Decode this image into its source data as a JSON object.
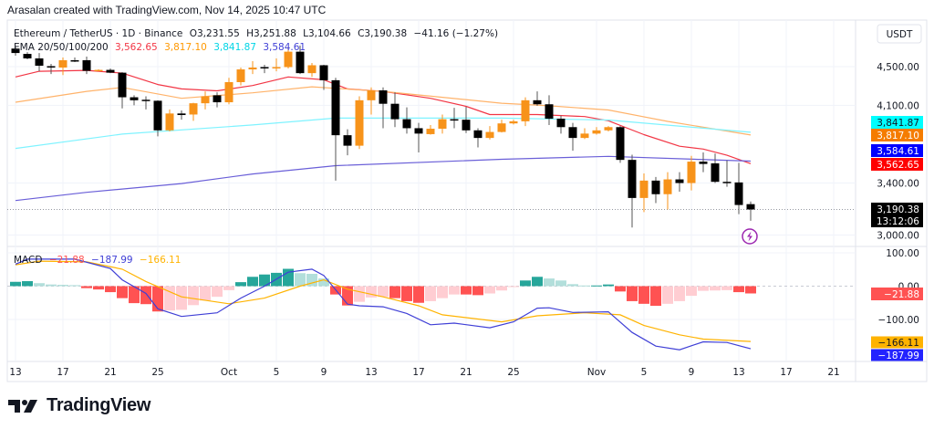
{
  "attribution": "Arasalan created with TradingView.com, Nov 14, 2025 10:47 UTC",
  "legend": {
    "symbol": "Ethereum / TetherUS · 1D · Binance",
    "open": "O3,231.55",
    "high": "H3,251.88",
    "low": "L3,104.66",
    "close": "C3,190.38",
    "change": "−41.16 (−1.27%)",
    "ema_label": "EMA 20/50/100/200",
    "ema20": "3,562.65",
    "ema50": "3,817.10",
    "ema100": "3,841.87",
    "ema200": "3,584.61"
  },
  "macd_legend": {
    "label": "MACD",
    "hist": "−21.88",
    "macd": "−187.99",
    "signal": "−166.11"
  },
  "currency_button": "USDT",
  "price_axis": {
    "ticks": [
      {
        "value": 4500,
        "label": "4,500.00"
      },
      {
        "value": 4100,
        "label": "4,100.00"
      },
      {
        "value": 3400,
        "label": "3,400.00"
      },
      {
        "value": 3000,
        "label": "3,000.00"
      }
    ],
    "scale": "log"
  },
  "macd_axis": {
    "ticks": [
      {
        "value": 100,
        "label": "100.00"
      },
      {
        "value": 0,
        "label": "0.00"
      },
      {
        "value": -100,
        "label": "−100.00"
      }
    ]
  },
  "badges": {
    "ema100": {
      "label": "3,841.87",
      "value": 3841.87
    },
    "ema50": {
      "label": "3,817.10",
      "value": 3817.1
    },
    "ema200": {
      "label": "3,584.61",
      "value": 3584.61
    },
    "ema20": {
      "label": "3,562.65",
      "value": 3562.65
    },
    "last_price": {
      "label": "3,190.38",
      "value": 3190.38,
      "countdown": "13:12:06"
    },
    "hist": {
      "label": "−21.88",
      "value": -21.88
    },
    "signal": {
      "label": "−166.11",
      "value": -166.11
    },
    "macd": {
      "label": "−187.99",
      "value": -187.99
    }
  },
  "x_axis": {
    "labels": [
      {
        "date": "2025-09-13",
        "label": "13"
      },
      {
        "date": "2025-09-17",
        "label": "17"
      },
      {
        "date": "2025-09-21",
        "label": "21"
      },
      {
        "date": "2025-09-25",
        "label": "25"
      },
      {
        "date": "2025-10-01",
        "label": "Oct"
      },
      {
        "date": "2025-10-05",
        "label": "5"
      },
      {
        "date": "2025-10-09",
        "label": "9"
      },
      {
        "date": "2025-10-13",
        "label": "13"
      },
      {
        "date": "2025-10-17",
        "label": "17"
      },
      {
        "date": "2025-10-21",
        "label": "21"
      },
      {
        "date": "2025-10-25",
        "label": "25"
      },
      {
        "date": "2025-11-01",
        "label": "Nov"
      },
      {
        "date": "2025-11-05",
        "label": "5"
      },
      {
        "date": "2025-11-09",
        "label": "9"
      },
      {
        "date": "2025-11-13",
        "label": "13"
      },
      {
        "date": "2025-11-17",
        "label": "17"
      },
      {
        "date": "2025-11-21",
        "label": "21"
      }
    ]
  },
  "footer": {
    "brand": "TradingView"
  },
  "colors": {
    "up": "#f7931a",
    "down": "#000000",
    "ema20": "#f23645",
    "ema50": "#ff9800",
    "ema100": "#00e5ff",
    "ema200": "#3f3fd6",
    "macd": "#2962ff",
    "signal": "#ffb300",
    "hist_pos_grow": "#26a69a",
    "hist_pos_fall": "#b2dfdb",
    "hist_neg_fall": "#ff5252",
    "hist_neg_grow": "#ffcdd2",
    "alert": "#9c27b0"
  },
  "chart_data": {
    "type": "candlestick",
    "title": "Ethereum / TetherUS · 1D · Binance",
    "ylabel": "USDT",
    "ylim": [
      2950,
      4800
    ],
    "grid": true,
    "candles": [
      [
        "2025-09-13",
        4700,
        4715,
        4620,
        4650
      ],
      [
        "2025-09-14",
        4640,
        4660,
        4580,
        4590
      ],
      [
        "2025-09-15",
        4590,
        4650,
        4450,
        4510
      ],
      [
        "2025-09-16",
        4505,
        4530,
        4420,
        4490
      ],
      [
        "2025-09-17",
        4490,
        4600,
        4410,
        4570
      ],
      [
        "2025-09-18",
        4570,
        4600,
        4550,
        4565
      ],
      [
        "2025-09-19",
        4570,
        4610,
        4420,
        4455
      ],
      [
        "2025-09-20",
        4455,
        4470,
        4450,
        4465
      ],
      [
        "2025-09-21",
        4465,
        4480,
        4430,
        4435
      ],
      [
        "2025-09-22",
        4435,
        4440,
        4070,
        4180
      ],
      [
        "2025-09-23",
        4180,
        4200,
        4100,
        4150
      ],
      [
        "2025-09-24",
        4155,
        4190,
        4060,
        4145
      ],
      [
        "2025-09-25",
        4145,
        4150,
        3805,
        3860
      ],
      [
        "2025-09-26",
        3860,
        4060,
        3850,
        4020
      ],
      [
        "2025-09-27",
        4020,
        4050,
        3960,
        4005
      ],
      [
        "2025-09-28",
        4010,
        4125,
        3950,
        4120
      ],
      [
        "2025-09-29",
        4120,
        4240,
        4060,
        4190
      ],
      [
        "2025-09-30",
        4200,
        4230,
        4080,
        4130
      ],
      [
        "2025-10-01",
        4130,
        4380,
        4110,
        4335
      ],
      [
        "2025-10-02",
        4335,
        4490,
        4300,
        4470
      ],
      [
        "2025-10-03",
        4470,
        4560,
        4420,
        4490
      ],
      [
        "2025-10-04",
        4495,
        4520,
        4430,
        4485
      ],
      [
        "2025-10-05",
        4485,
        4590,
        4450,
        4495
      ],
      [
        "2025-10-06",
        4495,
        4720,
        4480,
        4665
      ],
      [
        "2025-10-07",
        4665,
        4735,
        4420,
        4430
      ],
      [
        "2025-10-08",
        4430,
        4540,
        4390,
        4515
      ],
      [
        "2025-10-09",
        4515,
        4520,
        4255,
        4355
      ],
      [
        "2025-10-10",
        4355,
        4380,
        3420,
        3815
      ],
      [
        "2025-10-11",
        3815,
        3870,
        3635,
        3720
      ],
      [
        "2025-10-12",
        3720,
        4190,
        3690,
        4150
      ],
      [
        "2025-10-13",
        4150,
        4280,
        4010,
        4250
      ],
      [
        "2025-10-14",
        4250,
        4280,
        3880,
        4115
      ],
      [
        "2025-10-15",
        4115,
        4230,
        3890,
        3965
      ],
      [
        "2025-10-16",
        3965,
        4080,
        3830,
        3880
      ],
      [
        "2025-10-17",
        3880,
        3930,
        3660,
        3830
      ],
      [
        "2025-10-18",
        3825,
        3910,
        3820,
        3875
      ],
      [
        "2025-10-19",
        3875,
        4010,
        3830,
        3965
      ],
      [
        "2025-10-20",
        3965,
        4075,
        3880,
        3960
      ],
      [
        "2025-10-21",
        3960,
        4085,
        3835,
        3860
      ],
      [
        "2025-10-22",
        3860,
        3880,
        3705,
        3790
      ],
      [
        "2025-10-23",
        3790,
        3900,
        3775,
        3845
      ],
      [
        "2025-10-24",
        3845,
        3960,
        3840,
        3925
      ],
      [
        "2025-10-25",
        3925,
        3960,
        3915,
        3945
      ],
      [
        "2025-10-26",
        3945,
        4180,
        3900,
        4150
      ],
      [
        "2025-10-27",
        4150,
        4240,
        4095,
        4110
      ],
      [
        "2025-10-28",
        4110,
        4200,
        3910,
        3970
      ],
      [
        "2025-10-29",
        3970,
        4000,
        3830,
        3890
      ],
      [
        "2025-10-30",
        3890,
        3930,
        3675,
        3790
      ],
      [
        "2025-10-31",
        3790,
        3880,
        3780,
        3830
      ],
      [
        "2025-11-01",
        3830,
        3890,
        3820,
        3860
      ],
      [
        "2025-11-02",
        3860,
        3900,
        3850,
        3890
      ],
      [
        "2025-11-03",
        3890,
        3900,
        3570,
        3595
      ],
      [
        "2025-11-04",
        3595,
        3640,
        3055,
        3280
      ],
      [
        "2025-11-05",
        3280,
        3480,
        3170,
        3420
      ],
      [
        "2025-11-06",
        3420,
        3450,
        3240,
        3310
      ],
      [
        "2025-11-07",
        3310,
        3490,
        3190,
        3430
      ],
      [
        "2025-11-08",
        3430,
        3490,
        3330,
        3400
      ],
      [
        "2025-11-09",
        3400,
        3630,
        3340,
        3580
      ],
      [
        "2025-11-10",
        3580,
        3660,
        3490,
        3560
      ],
      [
        "2025-11-11",
        3565,
        3650,
        3400,
        3410
      ],
      [
        "2025-11-12",
        3410,
        3590,
        3370,
        3405
      ],
      [
        "2025-11-13",
        3405,
        3570,
        3155,
        3225
      ],
      [
        "2025-11-14",
        3231.55,
        3251.88,
        3104.66,
        3190.38
      ]
    ],
    "ema": {
      "ema20": [
        [
          "2025-09-13",
          4390
        ],
        [
          "2025-09-15",
          4450
        ],
        [
          "2025-09-19",
          4460
        ],
        [
          "2025-09-22",
          4430
        ],
        [
          "2025-09-25",
          4310
        ],
        [
          "2025-09-27",
          4265
        ],
        [
          "2025-09-30",
          4245
        ],
        [
          "2025-10-03",
          4300
        ],
        [
          "2025-10-06",
          4390
        ],
        [
          "2025-10-09",
          4360
        ],
        [
          "2025-10-11",
          4265
        ],
        [
          "2025-10-14",
          4240
        ],
        [
          "2025-10-18",
          4170
        ],
        [
          "2025-10-21",
          4090
        ],
        [
          "2025-10-23",
          4010
        ],
        [
          "2025-10-27",
          4010
        ],
        [
          "2025-10-31",
          3990
        ],
        [
          "2025-11-02",
          3950
        ],
        [
          "2025-11-05",
          3820
        ],
        [
          "2025-11-08",
          3715
        ],
        [
          "2025-11-10",
          3690
        ],
        [
          "2025-11-12",
          3635
        ],
        [
          "2025-11-14",
          3562.65
        ]
      ],
      "ema50": [
        [
          "2025-09-13",
          4130
        ],
        [
          "2025-09-19",
          4240
        ],
        [
          "2025-09-22",
          4280
        ],
        [
          "2025-09-27",
          4170
        ],
        [
          "2025-10-03",
          4225
        ],
        [
          "2025-10-08",
          4287
        ],
        [
          "2025-10-14",
          4240
        ],
        [
          "2025-10-24",
          4120
        ],
        [
          "2025-10-28",
          4095
        ],
        [
          "2025-11-02",
          4054
        ],
        [
          "2025-11-07",
          3944
        ],
        [
          "2025-11-14",
          3817.1
        ]
      ],
      "ema100": [
        [
          "2025-09-13",
          3696
        ],
        [
          "2025-09-22",
          3825
        ],
        [
          "2025-10-03",
          3910
        ],
        [
          "2025-10-10",
          3975
        ],
        [
          "2025-10-24",
          3975
        ],
        [
          "2025-11-02",
          3957
        ],
        [
          "2025-11-14",
          3841.87
        ]
      ],
      "ema200": [
        [
          "2025-09-13",
          3260
        ],
        [
          "2025-09-19",
          3325
        ],
        [
          "2025-09-27",
          3396
        ],
        [
          "2025-10-03",
          3475
        ],
        [
          "2025-10-10",
          3545
        ],
        [
          "2025-10-24",
          3600
        ],
        [
          "2025-11-02",
          3626
        ],
        [
          "2025-11-14",
          3584.61
        ]
      ]
    },
    "macd": {
      "ylim": [
        -220,
        130
      ],
      "histogram": [
        13,
        15,
        9,
        5,
        4,
        3,
        -6,
        -10,
        -18,
        -36,
        -51,
        -54,
        -76,
        -73,
        -71,
        -57,
        -43,
        -32,
        -12,
        12,
        28,
        35,
        40,
        52,
        39,
        37,
        23,
        -25,
        -58,
        -47,
        -34,
        -32,
        -36,
        -45,
        -50,
        -45,
        -36,
        -25,
        -25,
        -27,
        -22,
        -13,
        -2,
        17,
        28,
        23,
        17,
        6,
        2,
        2,
        5,
        -16,
        -45,
        -53,
        -59,
        -53,
        -45,
        -29,
        -14,
        -13,
        -12,
        -18,
        -21.88
      ],
      "macd_line": [
        [
          "2025-09-13",
          66
        ],
        [
          "2025-09-14",
          81
        ],
        [
          "2025-09-18",
          81
        ],
        [
          "2025-09-21",
          53
        ],
        [
          "2025-09-22",
          19
        ],
        [
          "2025-09-24",
          -22
        ],
        [
          "2025-09-25",
          -68
        ],
        [
          "2025-09-27",
          -91
        ],
        [
          "2025-09-30",
          -80
        ],
        [
          "2025-10-02",
          -36
        ],
        [
          "2025-10-04",
          0
        ],
        [
          "2025-10-06",
          42
        ],
        [
          "2025-10-08",
          51
        ],
        [
          "2025-10-09",
          32
        ],
        [
          "2025-10-11",
          -54
        ],
        [
          "2025-10-12",
          -59
        ],
        [
          "2025-10-14",
          -62
        ],
        [
          "2025-10-16",
          -82
        ],
        [
          "2025-10-18",
          -116
        ],
        [
          "2025-10-20",
          -111
        ],
        [
          "2025-10-23",
          -125
        ],
        [
          "2025-10-25",
          -107
        ],
        [
          "2025-10-27",
          -66
        ],
        [
          "2025-10-28",
          -65
        ],
        [
          "2025-10-30",
          -79
        ],
        [
          "2025-11-02",
          -77
        ],
        [
          "2025-11-04",
          -139
        ],
        [
          "2025-11-06",
          -180
        ],
        [
          "2025-11-08",
          -191
        ],
        [
          "2025-11-10",
          -167
        ],
        [
          "2025-11-12",
          -169
        ],
        [
          "2025-11-14",
          -187.99
        ]
      ],
      "signal_line": [
        [
          "2025-09-13",
          64
        ],
        [
          "2025-09-15",
          75
        ],
        [
          "2025-09-19",
          73
        ],
        [
          "2025-09-22",
          51
        ],
        [
          "2025-09-24",
          14
        ],
        [
          "2025-09-27",
          -32
        ],
        [
          "2025-10-01",
          -53
        ],
        [
          "2025-10-04",
          -36
        ],
        [
          "2025-10-07",
          0
        ],
        [
          "2025-10-09",
          19
        ],
        [
          "2025-10-11",
          -9
        ],
        [
          "2025-10-14",
          -32
        ],
        [
          "2025-10-17",
          -59
        ],
        [
          "2025-10-19",
          -86
        ],
        [
          "2025-10-24",
          -107
        ],
        [
          "2025-10-27",
          -89
        ],
        [
          "2025-10-31",
          -80
        ],
        [
          "2025-11-03",
          -86
        ],
        [
          "2025-11-05",
          -118
        ],
        [
          "2025-11-08",
          -146
        ],
        [
          "2025-11-10",
          -159
        ],
        [
          "2025-11-14",
          -166.11
        ]
      ]
    }
  }
}
